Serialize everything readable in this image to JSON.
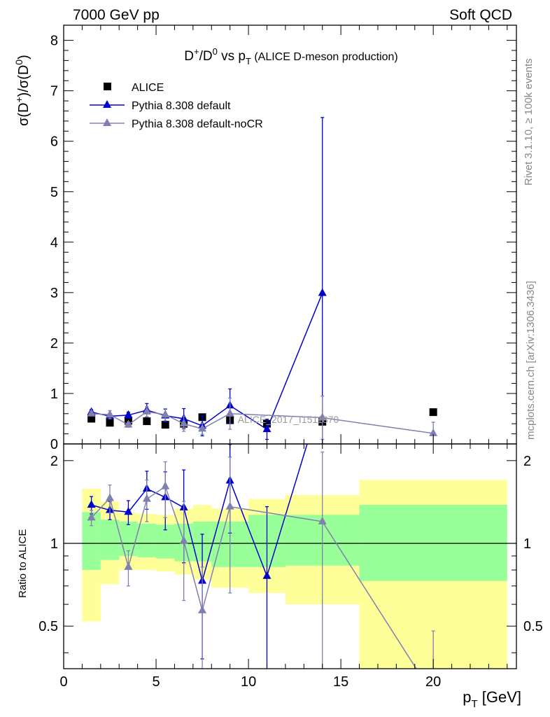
{
  "header": {
    "left": "7000 GeV pp",
    "right": "Soft QCD"
  },
  "side_labels": {
    "rivet": "Rivet 3.1.10, ≥ 100k events",
    "mcplots": "mcplots.cern.ch [arXiv:1306.3436]"
  },
  "colors": {
    "alice": "#000000",
    "default": "#0000cc",
    "nocr": "#8080b0",
    "band_inner": "#99ff99",
    "band_outer": "#ffff99"
  },
  "chart_data": {
    "type": "scatter",
    "title": {
      "main": "D",
      "sup1": "+",
      "mid": "/D",
      "sup2": "0",
      "vs": " vs p",
      "sub": "T",
      "rest": " (ALICE D-meson production)"
    },
    "ylabel": {
      "a": "σ(D",
      "sup1": "+",
      "b": ")/σ(D",
      "sup2": "0",
      "c": ")"
    },
    "ratio_ylabel": "Ratio to ALICE",
    "xlabel": {
      "main": "p",
      "sub": "T",
      "rest": " [GeV]"
    },
    "watermark": "ALICE_2017_I1511870",
    "xlim": [
      0,
      24.5
    ],
    "ylim": [
      0,
      8.3
    ],
    "ratio_ylim": [
      0.35,
      2.3
    ],
    "ratio_log": true,
    "xticks": [
      0,
      5,
      10,
      15,
      20
    ],
    "yticks": [
      0,
      1,
      2,
      3,
      4,
      5,
      6,
      7,
      8
    ],
    "ratio_yticks": [
      0.5,
      1,
      2
    ],
    "ratio_yticks_labels": [
      "0.5",
      "1",
      "2"
    ],
    "legend": {
      "placement": "top-left",
      "entries": [
        "ALICE",
        "Pythia 8.308 default",
        "Pythia 8.308 default-noCR"
      ]
    },
    "alice": {
      "name": "ALICE",
      "x": [
        1.5,
        2.5,
        3.5,
        4.5,
        5.5,
        6.5,
        7.5,
        9,
        11,
        14,
        20
      ],
      "y": [
        0.5,
        0.42,
        0.46,
        0.45,
        0.38,
        0.4,
        0.53,
        0.47,
        0.4,
        0.44,
        0.63
      ],
      "xlo": [
        1,
        2,
        3,
        4,
        5,
        6,
        7,
        8,
        10,
        12,
        16
      ],
      "xhi": [
        2,
        3,
        4,
        5,
        6,
        7,
        8,
        10,
        12,
        16,
        24
      ],
      "band_inner": [
        [
          0.8,
          1.3
        ],
        [
          0.87,
          1.22
        ],
        [
          0.9,
          1.2
        ],
        [
          0.89,
          1.18
        ],
        [
          0.88,
          1.17
        ],
        [
          0.86,
          1.18
        ],
        [
          0.86,
          1.2
        ],
        [
          0.82,
          1.2
        ],
        [
          0.82,
          1.27
        ],
        [
          0.83,
          1.27
        ],
        [
          0.73,
          1.38
        ]
      ],
      "band_outer": [
        [
          0.52,
          1.58
        ],
        [
          0.71,
          1.42
        ],
        [
          0.8,
          1.29
        ],
        [
          0.8,
          1.28
        ],
        [
          0.79,
          1.27
        ],
        [
          0.77,
          1.34
        ],
        [
          0.74,
          1.38
        ],
        [
          0.69,
          1.34
        ],
        [
          0.66,
          1.45
        ],
        [
          0.6,
          1.5
        ],
        [
          0.3,
          1.7
        ]
      ]
    },
    "series": [
      {
        "name": "Pythia 8.308 default",
        "x": [
          1.5,
          2.5,
          3.5,
          4.5,
          5.5,
          6.5,
          7.5,
          9,
          11,
          14
        ],
        "y": [
          0.63,
          0.55,
          0.57,
          0.67,
          0.56,
          0.5,
          0.36,
          0.76,
          0.29,
          2.99
        ],
        "err": [
          0.05,
          0.05,
          0.06,
          0.13,
          0.13,
          0.2,
          0.2,
          0.33,
          0.2,
          3.48
        ],
        "ratio": [
          1.38,
          1.32,
          1.3,
          1.58,
          1.47,
          1.35,
          0.73,
          1.69,
          0.76,
          3.5
        ],
        "ratio_err": [
          0.1,
          0.1,
          0.13,
          0.25,
          0.35,
          0.5,
          0.35,
          0.6,
          0.6,
          0
        ]
      },
      {
        "name": "Pythia 8.308 default-noCR",
        "x": [
          1.5,
          2.5,
          3.5,
          4.5,
          5.5,
          6.5,
          7.5,
          9,
          14,
          20
        ],
        "y": [
          0.6,
          0.58,
          0.38,
          0.64,
          0.58,
          0.4,
          0.3,
          0.6,
          0.52,
          0.21
        ],
        "err": [
          0.04,
          0.08,
          0.05,
          0.1,
          0.12,
          0.15,
          0.11,
          0.31,
          0.43,
          0.22
        ],
        "ratio": [
          1.24,
          1.46,
          0.82,
          1.45,
          1.61,
          1.02,
          0.57,
          1.36,
          1.2,
          0.28
        ],
        "ratio_err": [
          0.08,
          0.17,
          0.12,
          0.25,
          0.37,
          0.4,
          0.25,
          0.7,
          0.95,
          0.2
        ]
      }
    ]
  }
}
